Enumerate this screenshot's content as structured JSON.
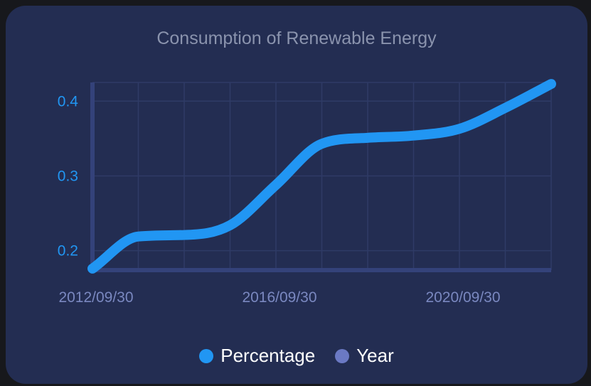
{
  "colors": {
    "background": "#17181c",
    "card": "#232d52",
    "grid": "#2f3b66",
    "axis": "#34427a",
    "title": "#8a93ad",
    "y_tick": "#2196f3",
    "x_tick": "#7a88c0",
    "series_percentage": "#2196f3",
    "series_year": "#6b79c4"
  },
  "chart_data": {
    "type": "line",
    "title": "Consumption of Renewable Energy",
    "xlabel": "",
    "ylabel": "",
    "x": [
      "2012/09/30",
      "2013/09/30",
      "2014/09/30",
      "2015/09/30",
      "2016/09/30",
      "2017/09/30",
      "2018/09/30",
      "2019/09/30",
      "2020/09/30",
      "2021/09/30",
      "2022/09/30"
    ],
    "x_tick_labels": [
      "2012/09/30",
      "2016/09/30",
      "2020/09/30"
    ],
    "ylim": [
      0.174,
      0.425
    ],
    "y_ticks": [
      0.2,
      0.3,
      0.4
    ],
    "grid": true,
    "legend_position": "bottom",
    "series": [
      {
        "name": "Percentage",
        "values": [
          0.176,
          0.219,
          0.221,
          0.234,
          0.288,
          0.343,
          0.351,
          0.354,
          0.363,
          0.391,
          0.423
        ]
      }
    ],
    "legend": [
      {
        "name": "Percentage",
        "color": "#2196f3"
      },
      {
        "name": "Year",
        "color": "#6b79c4"
      }
    ]
  }
}
